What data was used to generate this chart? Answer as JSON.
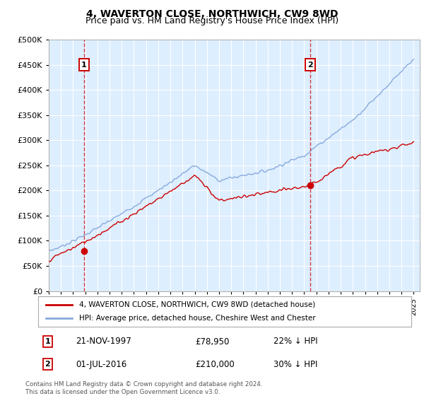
{
  "title": "4, WAVERTON CLOSE, NORTHWICH, CW9 8WD",
  "subtitle": "Price paid vs. HM Land Registry's House Price Index (HPI)",
  "ylim": [
    0,
    500000
  ],
  "yticks": [
    0,
    50000,
    100000,
    150000,
    200000,
    250000,
    300000,
    350000,
    400000,
    450000,
    500000
  ],
  "ytick_labels": [
    "£0",
    "£50K",
    "£100K",
    "£150K",
    "£200K",
    "£250K",
    "£300K",
    "£350K",
    "£400K",
    "£450K",
    "£500K"
  ],
  "xlim_start": 1995.0,
  "xlim_end": 2025.5,
  "bg_color": "#ddeeff",
  "red_color": "#cc0000",
  "blue_color": "#88aadd",
  "marker1_date": 1997.9,
  "marker1_price": 78950,
  "marker2_date": 2016.5,
  "marker2_price": 210000,
  "legend_line1": "4, WAVERTON CLOSE, NORTHWICH, CW9 8WD (detached house)",
  "legend_line2": "HPI: Average price, detached house, Cheshire West and Chester",
  "footer": "Contains HM Land Registry data © Crown copyright and database right 2024.\nThis data is licensed under the Open Government Licence v3.0."
}
